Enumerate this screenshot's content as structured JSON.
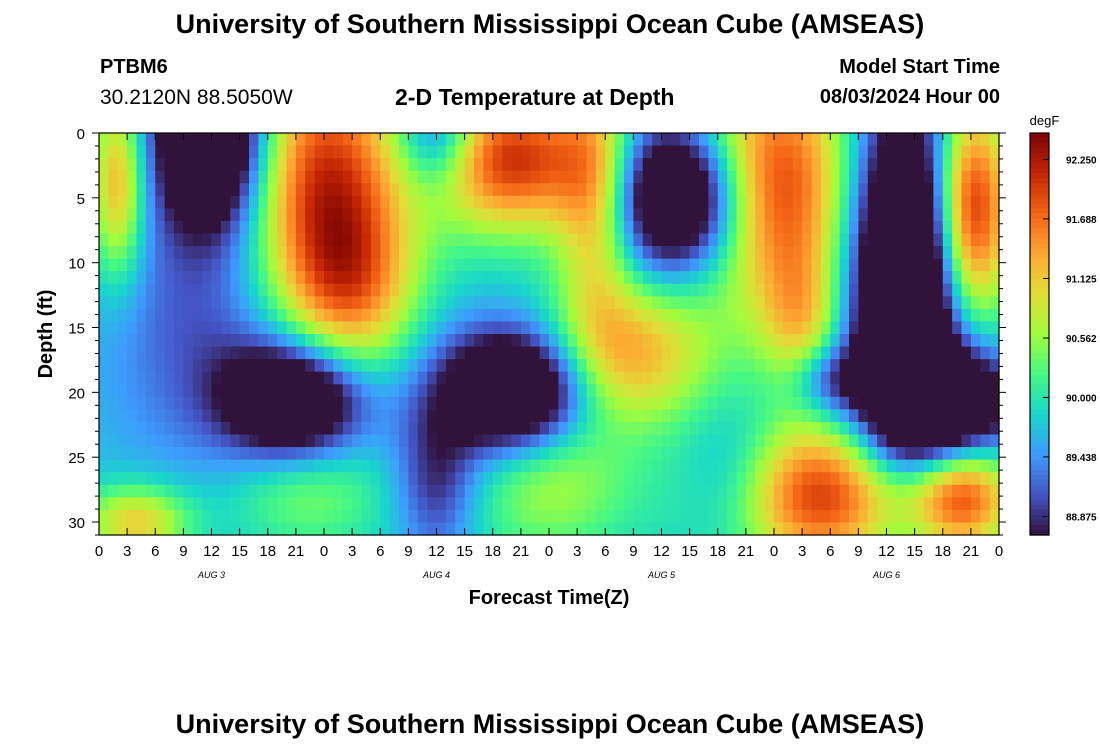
{
  "header": {
    "title": "University of Southern Mississippi Ocean Cube (AMSEAS)",
    "footer_title": "University of Southern Mississippi Ocean Cube (AMSEAS)",
    "station_name": "PTBM6",
    "station_coords": "30.2120N  88.5050W",
    "plot_title": "2-D Temperature at Depth",
    "model_start_label": "Model Start Time",
    "model_start_value": "08/03/2024 Hour 00"
  },
  "chart_data": {
    "type": "heatmap",
    "xlabel": "Forecast Time(Z)",
    "ylabel": "Depth (ft)",
    "units_label": "degF",
    "x_tick_labels": [
      "0",
      "3",
      "6",
      "9",
      "12",
      "15",
      "18",
      "21",
      "0",
      "3",
      "6",
      "9",
      "12",
      "15",
      "18",
      "21",
      "0",
      "3",
      "6",
      "9",
      "12",
      "15",
      "18",
      "21",
      "0",
      "3",
      "6",
      "9",
      "12",
      "15",
      "18",
      "21",
      "0"
    ],
    "day_labels": [
      "AUG 3",
      "AUG 4",
      "AUG 5",
      "AUG 6"
    ],
    "xlim_hours": [
      0,
      96
    ],
    "y_ticks": [
      0,
      5,
      10,
      15,
      20,
      25,
      30
    ],
    "ylim": [
      0,
      31
    ],
    "colorbar_ticks": [
      "92.250",
      "91.688",
      "91.125",
      "90.562",
      "90.000",
      "89.438",
      "88.875"
    ],
    "colorbar_range": [
      88.7,
      92.5
    ],
    "colormap": [
      "#30123b",
      "#4454c4",
      "#3e9bfe",
      "#18d6cb",
      "#46f884",
      "#a2fc3c",
      "#e1dd37",
      "#fea632",
      "#f36315",
      "#c42503",
      "#7a0403"
    ],
    "field": {
      "blobs": [
        {
          "t": 12,
          "d": 0,
          "st": 4,
          "sd": 5,
          "v": -2.8
        },
        {
          "t": 24,
          "d": 4,
          "st": 6,
          "sd": 8,
          "v": 2.3
        },
        {
          "t": 27,
          "d": 12,
          "st": 5,
          "sd": 5,
          "v": 1.2
        },
        {
          "t": 2,
          "d": 4,
          "st": 2,
          "sd": 5,
          "v": 1.6
        },
        {
          "t": 21,
          "d": 20.5,
          "st": 5,
          "sd": 3,
          "v": -2.3
        },
        {
          "t": 12,
          "d": 15,
          "st": 8,
          "sd": 8,
          "v": -0.7
        },
        {
          "t": 44,
          "d": 2,
          "st": 6,
          "sd": 4,
          "v": 2.3
        },
        {
          "t": 36,
          "d": 0,
          "st": 3,
          "sd": 3,
          "v": -1.2
        },
        {
          "t": 53,
          "d": 5,
          "st": 3,
          "sd": 7,
          "v": 1.4
        },
        {
          "t": 45,
          "d": 20,
          "st": 5,
          "sd": 3,
          "v": -1.9
        },
        {
          "t": 41,
          "d": 20,
          "st": 6,
          "sd": 4,
          "v": -0.8
        },
        {
          "t": 62,
          "d": 5,
          "st": 5,
          "sd": 4,
          "v": -2.6
        },
        {
          "t": 57,
          "d": 17,
          "st": 6,
          "sd": 4,
          "v": 1.5
        },
        {
          "t": 72,
          "d": 4,
          "st": 6,
          "sd": 7,
          "v": 2.3
        },
        {
          "t": 75,
          "d": 15,
          "st": 3,
          "sd": 4,
          "v": 1.0
        },
        {
          "t": 86,
          "d": 12,
          "st": 4,
          "sd": 10,
          "v": -3.2
        },
        {
          "t": 91,
          "d": 21,
          "st": 5,
          "sd": 3,
          "v": -2.2
        },
        {
          "t": 93,
          "d": 6,
          "st": 3,
          "sd": 6,
          "v": 2.6
        },
        {
          "t": 77,
          "d": 28,
          "st": 8,
          "sd": 4,
          "v": 2.3
        },
        {
          "t": 92,
          "d": 28,
          "st": 4,
          "sd": 3,
          "v": 2.0
        },
        {
          "t": 48,
          "d": 27,
          "st": 6,
          "sd": 4,
          "v": 0.9
        },
        {
          "t": 22,
          "d": 28,
          "st": 6,
          "sd": 3,
          "v": 0.7
        },
        {
          "t": 4,
          "d": 30,
          "st": 4,
          "sd": 2,
          "v": 1.4
        },
        {
          "t": 68,
          "d": 27,
          "st": 4,
          "sd": 4,
          "v": -0.8
        },
        {
          "t": 78,
          "d": 19,
          "st": 3,
          "sd": 2,
          "v": -1.0
        },
        {
          "t": 36,
          "d": 27,
          "st": 3,
          "sd": 4,
          "v": -0.9
        }
      ]
    }
  }
}
